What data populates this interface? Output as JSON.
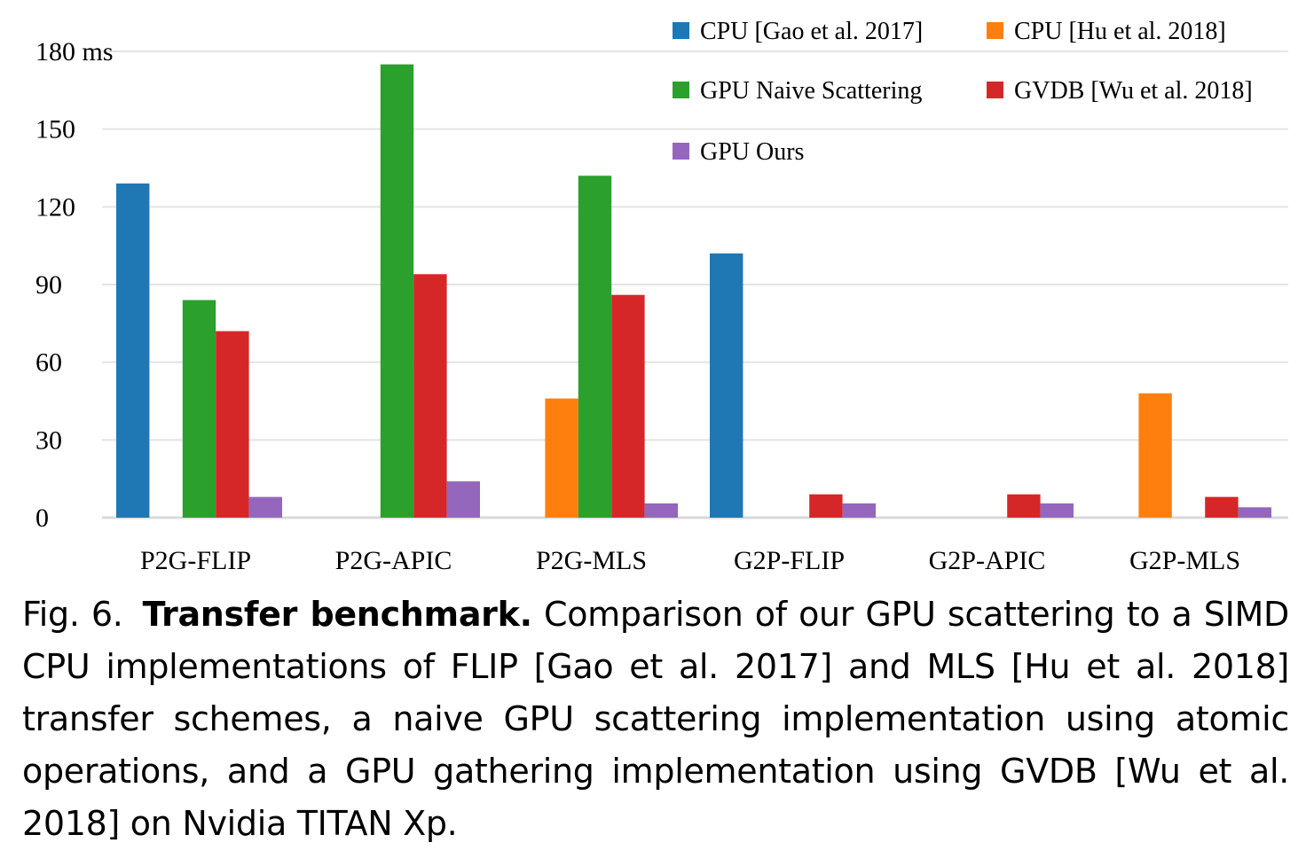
{
  "chart_data": {
    "type": "bar",
    "categories": [
      "P2G-FLIP",
      "P2G-APIC",
      "P2G-MLS",
      "G2P-FLIP",
      "G2P-APIC",
      "G2P-MLS"
    ],
    "series": [
      {
        "name": "CPU [Gao et al. 2017]",
        "color": "#1f77b4",
        "values": [
          129,
          null,
          null,
          102,
          null,
          null
        ]
      },
      {
        "name": "CPU [Hu et al. 2018]",
        "color": "#ff7f0e",
        "values": [
          null,
          null,
          46,
          null,
          null,
          48
        ]
      },
      {
        "name": "GPU Naive Scattering",
        "color": "#2ca02c",
        "values": [
          84,
          175,
          132,
          null,
          null,
          null
        ]
      },
      {
        "name": "GVDB [Wu et al. 2018]",
        "color": "#d62728",
        "values": [
          72,
          94,
          86,
          9,
          9,
          8
        ]
      },
      {
        "name": "GPU Ours",
        "color": "#9467bd",
        "values": [
          8,
          14,
          5.5,
          5.5,
          5.5,
          4
        ]
      }
    ],
    "ylabel": "",
    "yunit": "ms",
    "yticks": [
      0,
      30,
      60,
      90,
      120,
      150,
      180
    ],
    "ytick_labels": [
      "0",
      "30",
      "60",
      "90",
      "120",
      "150",
      "180 ms"
    ],
    "ylim": [
      0,
      180
    ],
    "grid": true,
    "legend_placement": "top-right"
  },
  "caption": {
    "fig_label": "Fig. 6.",
    "title": "Transfer benchmark.",
    "text": "Comparison of our GPU scattering to a SIMD CPU implementations of FLIP [Gao et al. 2017] and MLS [Hu et al. 2018] transfer schemes, a naive GPU scattering implementation using atomic operations, and a GPU gathering implementation using GVDB [Wu et al. 2018] on Nvidia TITAN Xp."
  }
}
